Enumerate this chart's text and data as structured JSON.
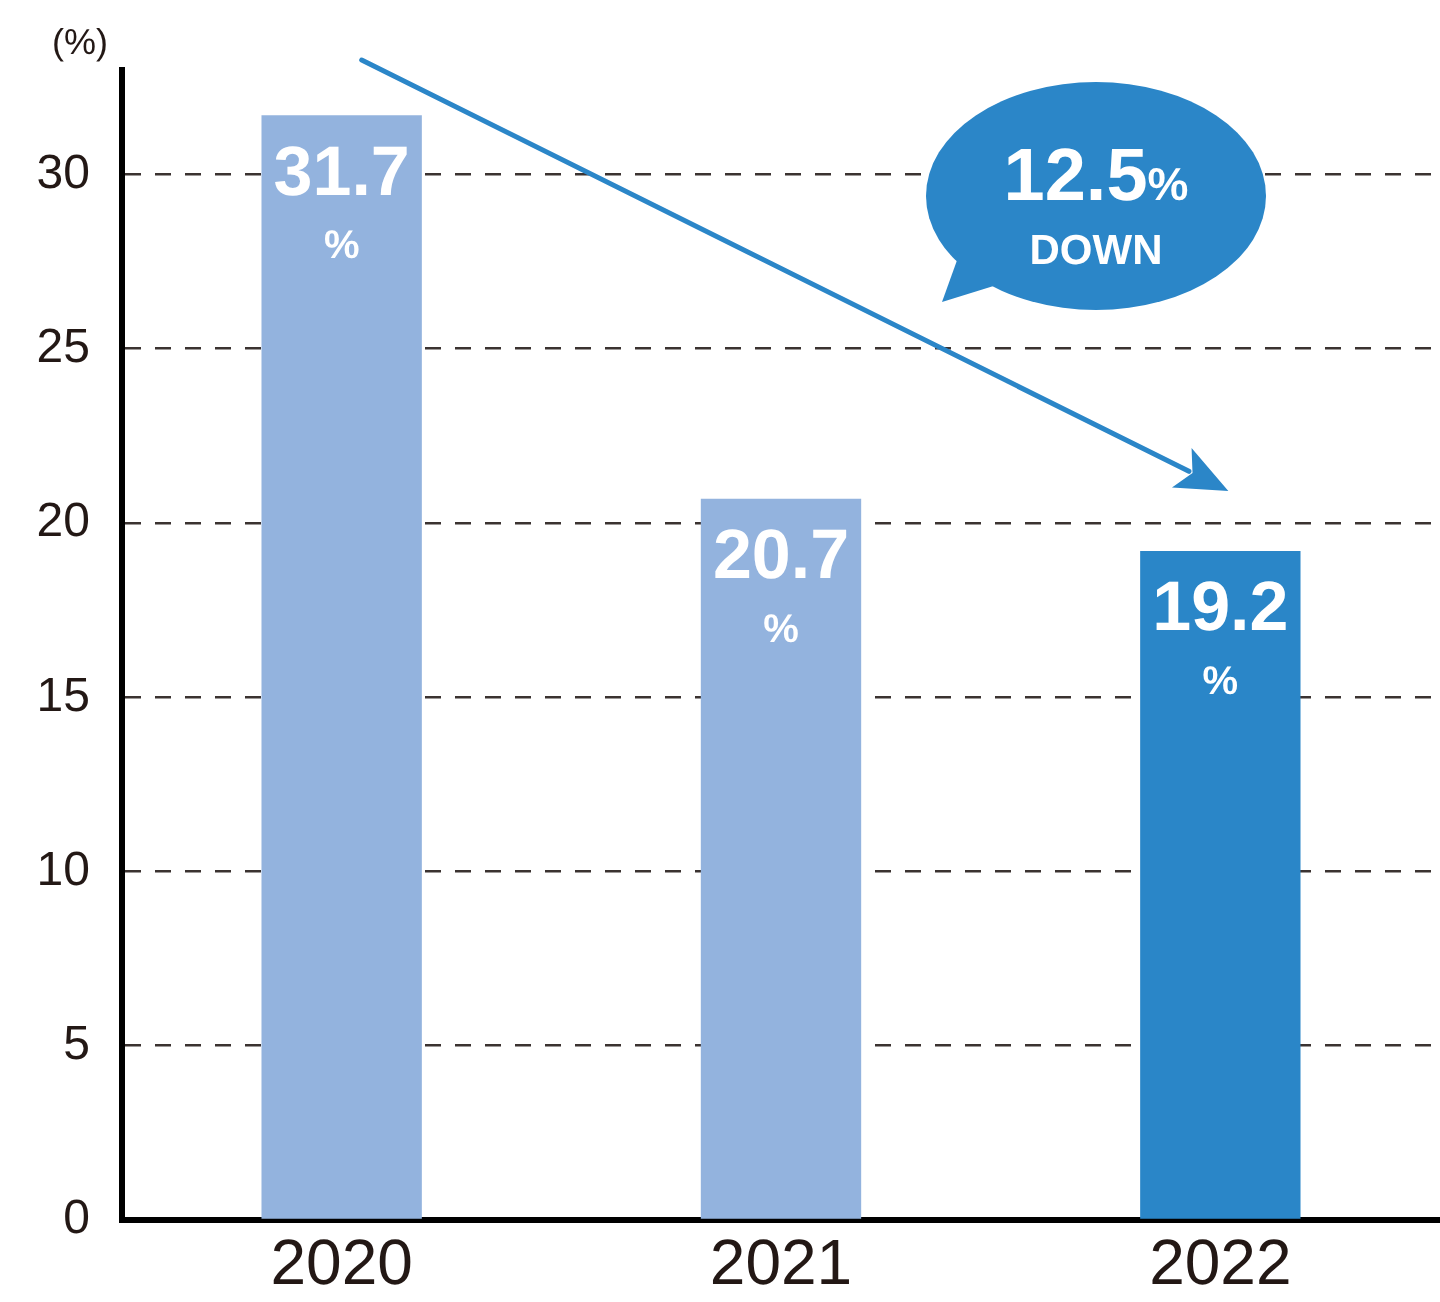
{
  "chart_data": {
    "type": "bar",
    "ylabel": "(%)",
    "categories": [
      "2020",
      "2021",
      "2022"
    ],
    "values": [
      31.7,
      20.7,
      19.2
    ],
    "colors": [
      "#93b3de",
      "#93b3de",
      "#2a86c8"
    ],
    "value_labels": [
      "31.7%",
      "20.7%",
      "19.2%"
    ],
    "ylim": [
      0,
      33
    ],
    "yticks": [
      0,
      5,
      10,
      15,
      20,
      25,
      30
    ],
    "grid": "y",
    "annotations": [
      "12.5% DOWN"
    ]
  }
}
